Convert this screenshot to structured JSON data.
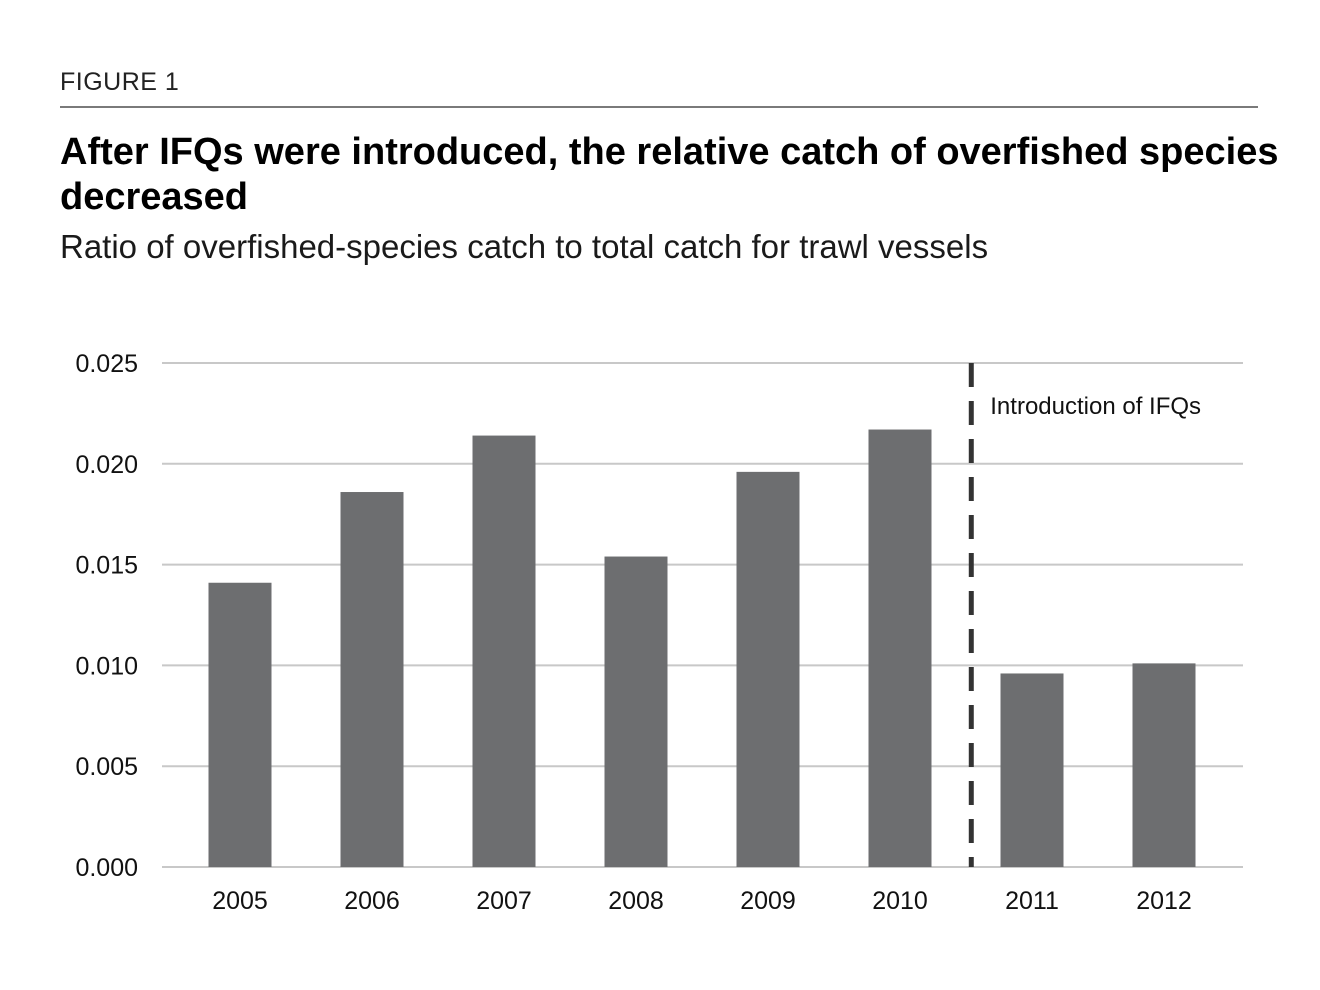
{
  "header": {
    "figure_label": "FIGURE 1",
    "title": "After IFQs were introduced, the relative catch of overfished species decreased",
    "subtitle": "Ratio of overfished-species catch to total catch for trawl vessels"
  },
  "chart_data": {
    "type": "bar",
    "title": "After IFQs were introduced, the relative catch of overfished species decreased",
    "subtitle": "Ratio of overfished-species catch to total catch for trawl vessels",
    "xlabel": "",
    "ylabel": "",
    "categories": [
      "2005",
      "2006",
      "2007",
      "2008",
      "2009",
      "2010",
      "2011",
      "2012"
    ],
    "values": [
      0.0141,
      0.0186,
      0.0214,
      0.0154,
      0.0196,
      0.0217,
      0.0096,
      0.0101
    ],
    "ylim": [
      0,
      0.025
    ],
    "yticks": [
      0.0,
      0.005,
      0.01,
      0.015,
      0.02,
      0.025
    ],
    "ytick_labels": [
      "0.000",
      "0.005",
      "0.010",
      "0.015",
      "0.020",
      "0.025"
    ],
    "grid": true,
    "legend": "none",
    "bar_color": "#6d6e70",
    "grid_color": "#c8c8c8",
    "annotation": {
      "text": "Introduction of IFQs",
      "after_category": "2010",
      "line_style": "dashed",
      "line_color": "#333333"
    }
  }
}
